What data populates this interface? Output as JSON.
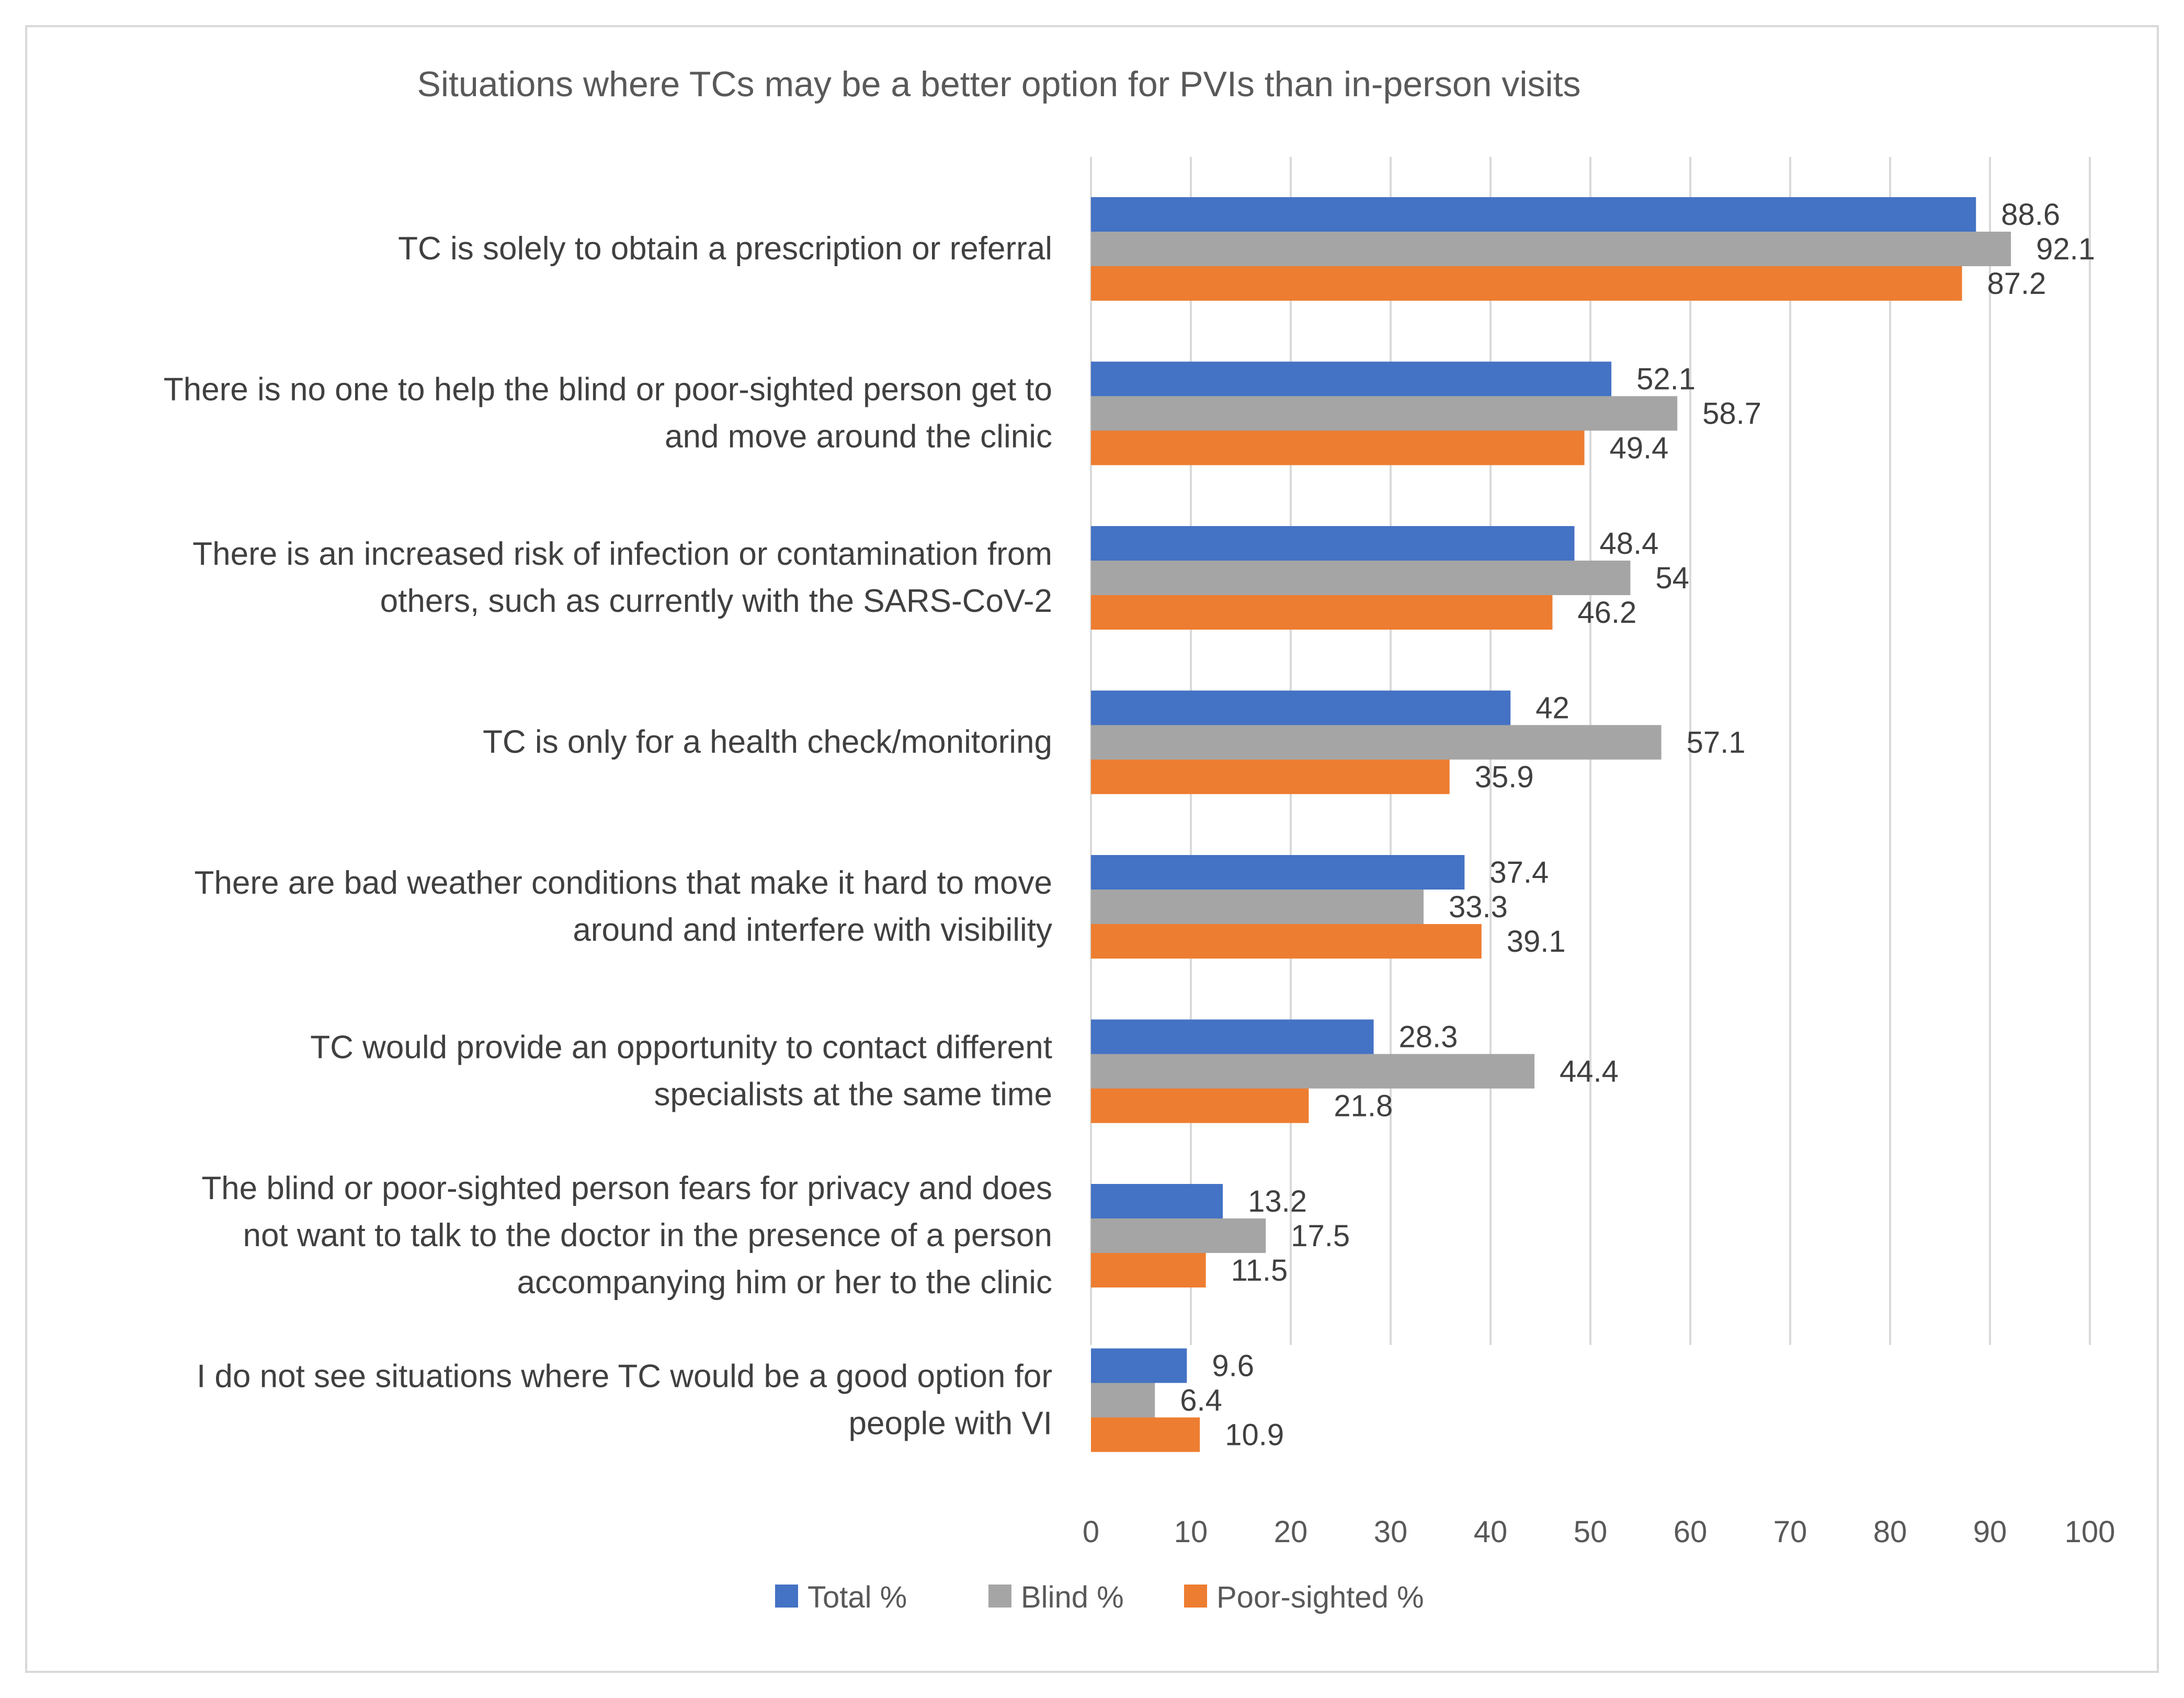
{
  "chart_data": {
    "type": "bar",
    "orientation": "horizontal",
    "title": "Situations where TCs may be a better option for PVIs than in-person visits",
    "categories": [
      [
        "TC is solely to obtain a prescription or referral"
      ],
      [
        "There is no one to help the blind or poor-sighted person get to",
        "and move around the clinic"
      ],
      [
        "There is an increased risk of infection or contamination from",
        "others, such as currently with the SARS-CoV-2"
      ],
      [
        "TC is only for a health check/monitoring"
      ],
      [
        "There are bad weather conditions that make it hard to move",
        "around and interfere with visibility"
      ],
      [
        "TC would provide an opportunity to contact different",
        "specialists at the same time"
      ],
      [
        "The blind or poor-sighted person fears for privacy and does",
        "not want to talk to the doctor in the presence of a person",
        "accompanying him or her to the clinic"
      ],
      [
        "I do not see situations where TC would be a good option for",
        "people with VI"
      ]
    ],
    "series": [
      {
        "name": "Total %",
        "color": "#4472c4",
        "values": [
          88.6,
          52.1,
          48.4,
          42,
          37.4,
          28.3,
          13.2,
          9.6
        ]
      },
      {
        "name": "Blind %",
        "color": "#a5a5a5",
        "values": [
          92.1,
          58.7,
          54,
          57.1,
          33.3,
          44.4,
          17.5,
          6.4
        ]
      },
      {
        "name": "Poor-sighted %",
        "color": "#ed7d31",
        "values": [
          87.2,
          49.4,
          46.2,
          35.9,
          39.1,
          21.8,
          11.5,
          10.9
        ]
      }
    ],
    "xlim": [
      0,
      100
    ],
    "xticks": [
      0,
      10,
      20,
      30,
      40,
      50,
      60,
      70,
      80,
      90,
      100
    ],
    "grid": true,
    "legend_position": "bottom",
    "data_labels": true
  }
}
